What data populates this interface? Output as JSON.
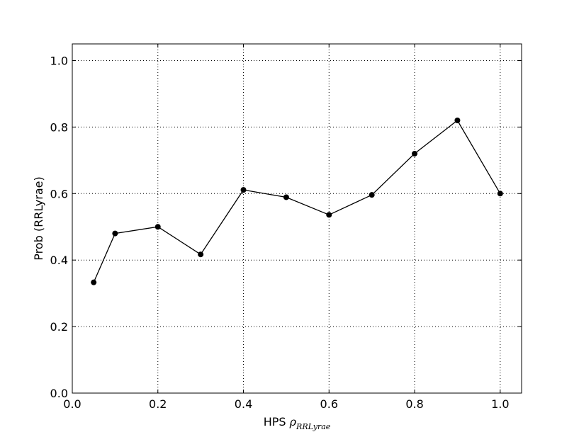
{
  "chart_data": {
    "type": "line",
    "xlabel": {
      "prefix": "HPS ",
      "symbol": "ρ",
      "subscript": "RRLyrae"
    },
    "ylabel": "Prob (RRLyrae)",
    "xlim": [
      0.0,
      1.05
    ],
    "ylim": [
      0.0,
      1.05
    ],
    "xticks": [
      0.0,
      0.2,
      0.4,
      0.6,
      0.8,
      1.0
    ],
    "yticks": [
      0.0,
      0.2,
      0.4,
      0.6,
      0.8,
      1.0
    ],
    "xtick_labels": [
      "0.0",
      "0.2",
      "0.4",
      "0.6",
      "0.8",
      "1.0"
    ],
    "ytick_labels": [
      "0.0",
      "0.2",
      "0.4",
      "0.6",
      "0.8",
      "1.0"
    ],
    "grid": true,
    "grid_style": "dotted",
    "line_color": "#000000",
    "marker": "circle",
    "series": [
      {
        "x": [
          0.05,
          0.1,
          0.2,
          0.3,
          0.4,
          0.5,
          0.6,
          0.7,
          0.8,
          0.9,
          1.0
        ],
        "y": [
          0.333,
          0.48,
          0.5,
          0.417,
          0.611,
          0.589,
          0.536,
          0.596,
          0.72,
          0.82,
          0.6
        ]
      }
    ]
  }
}
